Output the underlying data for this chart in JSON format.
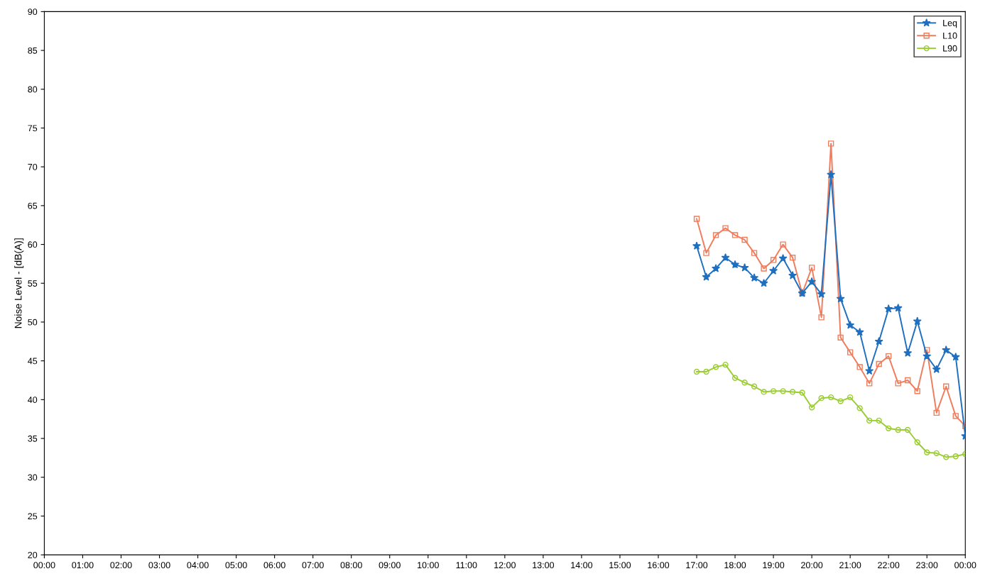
{
  "chart_data": {
    "type": "line",
    "ylabel": "Noise Level - [dB(A)]",
    "x": [
      17,
      17.25,
      17.5,
      17.75,
      18,
      18.25,
      18.5,
      18.75,
      19,
      19.25,
      19.5,
      19.75,
      20,
      20.25,
      20.5,
      20.75,
      21,
      21.25,
      21.5,
      21.75,
      22,
      22.25,
      22.5,
      22.75,
      23,
      23.25,
      23.5,
      23.75,
      24
    ],
    "series": [
      {
        "name": "Leq",
        "color": "#1f6fc0",
        "marker": "star",
        "values": [
          59.8,
          55.8,
          56.9,
          58.3,
          57.4,
          57.0,
          55.7,
          55.0,
          56.6,
          58.2,
          56.0,
          53.7,
          55.2,
          53.6,
          69.0,
          53.0,
          49.6,
          48.7,
          43.7,
          47.5,
          51.7,
          51.8,
          46.0,
          50.1,
          45.6,
          43.9,
          46.4,
          45.5,
          35.3
        ]
      },
      {
        "name": "L10",
        "color": "#f07c5c",
        "marker": "square",
        "values": [
          63.3,
          58.9,
          61.2,
          62.1,
          61.2,
          60.6,
          58.9,
          56.9,
          58.0,
          60.0,
          58.3,
          53.7,
          57.0,
          50.6,
          73.0,
          48.0,
          46.1,
          44.2,
          42.1,
          44.6,
          45.6,
          42.1,
          42.5,
          41.1,
          46.4,
          38.3,
          41.7,
          37.9,
          36.6
        ]
      },
      {
        "name": "L90",
        "color": "#9acd32",
        "marker": "circle",
        "values": [
          43.6,
          43.6,
          44.2,
          44.5,
          42.8,
          42.2,
          41.7,
          41.0,
          41.1,
          41.1,
          41.0,
          40.9,
          39.0,
          40.2,
          40.3,
          39.8,
          40.3,
          38.9,
          37.3,
          37.3,
          36.3,
          36.1,
          36.1,
          34.5,
          33.2,
          33.1,
          32.6,
          32.7,
          33.0
        ]
      }
    ],
    "xlim": [
      0,
      24
    ],
    "xticks": [
      {
        "value": 0,
        "label": "00:00"
      },
      {
        "value": 1,
        "label": "01:00"
      },
      {
        "value": 2,
        "label": "02:00"
      },
      {
        "value": 3,
        "label": "03:00"
      },
      {
        "value": 4,
        "label": "04:00"
      },
      {
        "value": 5,
        "label": "05:00"
      },
      {
        "value": 6,
        "label": "06:00"
      },
      {
        "value": 7,
        "label": "07:00"
      },
      {
        "value": 8,
        "label": "08:00"
      },
      {
        "value": 9,
        "label": "09:00"
      },
      {
        "value": 10,
        "label": "10:00"
      },
      {
        "value": 11,
        "label": "11:00"
      },
      {
        "value": 12,
        "label": "12:00"
      },
      {
        "value": 13,
        "label": "13:00"
      },
      {
        "value": 14,
        "label": "14:00"
      },
      {
        "value": 15,
        "label": "15:00"
      },
      {
        "value": 16,
        "label": "16:00"
      },
      {
        "value": 17,
        "label": "17:00"
      },
      {
        "value": 18,
        "label": "18:00"
      },
      {
        "value": 19,
        "label": "19:00"
      },
      {
        "value": 20,
        "label": "20:00"
      },
      {
        "value": 21,
        "label": "21:00"
      },
      {
        "value": 22,
        "label": "22:00"
      },
      {
        "value": 23,
        "label": "23:00"
      },
      {
        "value": 24,
        "label": "00:00"
      }
    ],
    "ylim": [
      20,
      90
    ],
    "yticks": [
      20,
      25,
      30,
      35,
      40,
      45,
      50,
      55,
      60,
      65,
      70,
      75,
      80,
      85,
      90
    ],
    "grid": false,
    "legend": "top right",
    "line_style": "solid"
  }
}
